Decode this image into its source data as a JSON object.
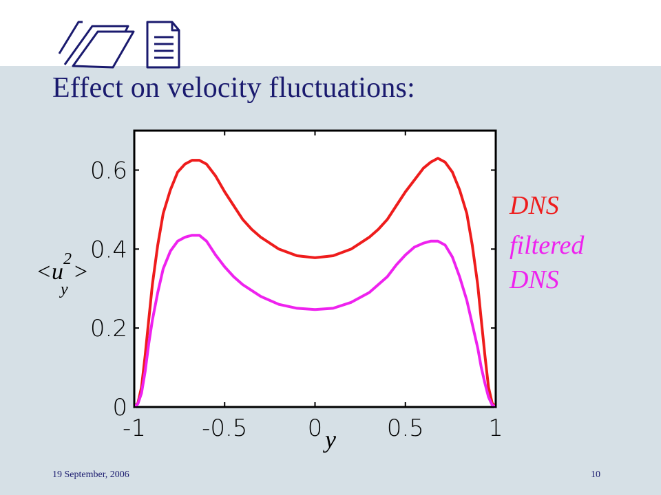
{
  "slide": {
    "title": "Effect on velocity fluctuations:",
    "footer_date": "19 September, 2006",
    "page_number": "10"
  },
  "colors": {
    "background_band": "#d6e0e6",
    "title": "#1a1a6e",
    "dns": "#ee1c1c",
    "filtered_dns": "#ee22ee"
  },
  "chart_data": {
    "type": "line",
    "xlabel": "y",
    "ylabel": {
      "base": "<u",
      "sup": "2",
      "sub": "y",
      "close": ">"
    },
    "xlim": [
      -1,
      1
    ],
    "ylim": [
      0,
      0.7
    ],
    "xticks": [
      "-1",
      "-0.5",
      "0",
      "0.5",
      "1"
    ],
    "xtick_values": [
      -1,
      -0.5,
      0,
      0.5,
      1
    ],
    "yticks": [
      "0",
      "0.2",
      "0.4",
      "0.6"
    ],
    "ytick_values": [
      0,
      0.2,
      0.4,
      0.6
    ],
    "grid": false,
    "legend_placement": "right",
    "series": [
      {
        "name": "DNS",
        "color": "#ee1c1c",
        "x": [
          -1,
          -0.98,
          -0.96,
          -0.94,
          -0.92,
          -0.9,
          -0.87,
          -0.84,
          -0.8,
          -0.76,
          -0.72,
          -0.68,
          -0.64,
          -0.6,
          -0.55,
          -0.5,
          -0.45,
          -0.4,
          -0.35,
          -0.3,
          -0.2,
          -0.1,
          0,
          0.1,
          0.2,
          0.3,
          0.35,
          0.4,
          0.45,
          0.5,
          0.55,
          0.6,
          0.64,
          0.68,
          0.72,
          0.76,
          0.8,
          0.84,
          0.87,
          0.9,
          0.92,
          0.94,
          0.96,
          0.98,
          1
        ],
        "y": [
          0,
          0.01,
          0.05,
          0.13,
          0.22,
          0.31,
          0.41,
          0.49,
          0.55,
          0.595,
          0.615,
          0.625,
          0.625,
          0.615,
          0.585,
          0.545,
          0.51,
          0.475,
          0.45,
          0.43,
          0.4,
          0.383,
          0.378,
          0.383,
          0.4,
          0.43,
          0.45,
          0.475,
          0.51,
          0.545,
          0.575,
          0.605,
          0.62,
          0.63,
          0.62,
          0.595,
          0.55,
          0.49,
          0.41,
          0.31,
          0.22,
          0.13,
          0.05,
          0.01,
          0
        ]
      },
      {
        "name": "filtered DNS",
        "color": "#ee22ee",
        "x": [
          -1,
          -0.98,
          -0.96,
          -0.94,
          -0.92,
          -0.9,
          -0.87,
          -0.84,
          -0.8,
          -0.76,
          -0.72,
          -0.68,
          -0.64,
          -0.6,
          -0.55,
          -0.5,
          -0.45,
          -0.4,
          -0.35,
          -0.3,
          -0.2,
          -0.1,
          0,
          0.1,
          0.2,
          0.3,
          0.35,
          0.4,
          0.45,
          0.5,
          0.55,
          0.6,
          0.64,
          0.68,
          0.72,
          0.76,
          0.8,
          0.84,
          0.87,
          0.9,
          0.92,
          0.94,
          0.96,
          0.98,
          1
        ],
        "y": [
          0,
          0.008,
          0.035,
          0.09,
          0.16,
          0.22,
          0.29,
          0.35,
          0.395,
          0.42,
          0.43,
          0.435,
          0.435,
          0.42,
          0.385,
          0.355,
          0.33,
          0.31,
          0.295,
          0.28,
          0.26,
          0.25,
          0.247,
          0.25,
          0.265,
          0.29,
          0.31,
          0.33,
          0.36,
          0.385,
          0.405,
          0.415,
          0.42,
          0.42,
          0.41,
          0.38,
          0.33,
          0.27,
          0.21,
          0.15,
          0.1,
          0.06,
          0.025,
          0.005,
          0
        ]
      }
    ],
    "legend": [
      {
        "text": "DNS",
        "color": "#ee1c1c"
      },
      {
        "text": "filtered",
        "color": "#ee22ee"
      },
      {
        "text": "DNS",
        "color": "#ee22ee"
      }
    ]
  }
}
